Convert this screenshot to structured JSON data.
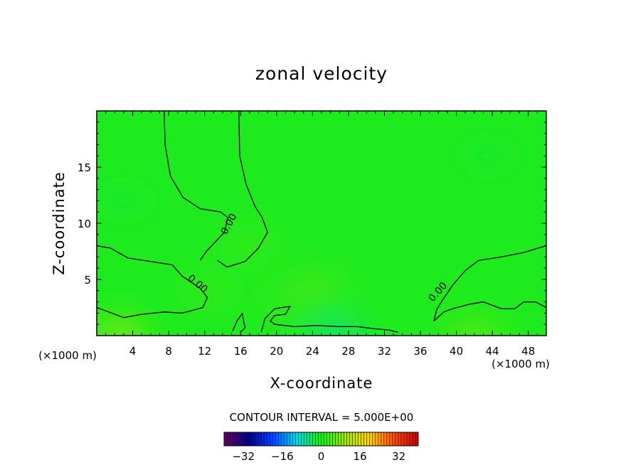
{
  "chart_data": {
    "type": "heatmap",
    "title": "zonal velocity",
    "xlabel": "X-coordinate",
    "ylabel": "Z-coordinate",
    "x_unit": "(×1000 m)",
    "y_unit": "(×1000 m)",
    "xlim": [
      0,
      50
    ],
    "ylim": [
      0,
      20
    ],
    "x_ticks": [
      4,
      8,
      12,
      16,
      20,
      24,
      28,
      32,
      36,
      40,
      44,
      48
    ],
    "y_ticks": [
      5,
      10,
      15
    ],
    "contour_interval_text": "CONTOUR INTERVAL = 5.000E+00",
    "contour_label": "0.00",
    "colorbar": {
      "range": [
        -40,
        40
      ],
      "ticks": [
        -32,
        -16,
        0,
        16,
        32
      ],
      "colormap": "rainbow (purple-blue-cyan-green-yellow-red)"
    },
    "field_dominant_value": 0,
    "zero_contours": [
      [
        [
          7.5,
          20
        ],
        [
          7.6,
          17
        ],
        [
          8.2,
          14.2
        ],
        [
          9.6,
          12.3
        ],
        [
          11.5,
          11.3
        ],
        [
          13.8,
          11.0
        ],
        [
          14.6,
          10.5
        ],
        [
          14.2,
          9.2
        ],
        [
          12.2,
          7.5
        ],
        [
          11.5,
          6.7
        ]
      ],
      [
        [
          15.8,
          20
        ],
        [
          15.9,
          16
        ],
        [
          16.6,
          13.5
        ],
        [
          17.6,
          11.5
        ],
        [
          18.4,
          10.5
        ],
        [
          19.0,
          9.2
        ],
        [
          18.0,
          7.8
        ],
        [
          16.5,
          6.6
        ],
        [
          14.5,
          6.1
        ],
        [
          13.4,
          6.7
        ]
      ],
      [
        [
          0,
          8.0
        ],
        [
          1.5,
          7.8
        ],
        [
          3.5,
          6.9
        ],
        [
          6.0,
          6.6
        ],
        [
          8.4,
          6.3
        ]
      ],
      [
        [
          8.4,
          6.3
        ],
        [
          9.5,
          5.3
        ],
        [
          11.5,
          4.2
        ],
        [
          12.3,
          3.4
        ],
        [
          11.8,
          2.5
        ],
        [
          9.5,
          2.0
        ],
        [
          7.5,
          2.1
        ],
        [
          5.0,
          1.9
        ],
        [
          3.0,
          1.6
        ],
        [
          1.0,
          2.2
        ],
        [
          0,
          2.5
        ]
      ],
      [
        [
          50,
          8.0
        ],
        [
          47.5,
          7.4
        ],
        [
          45.0,
          7.0
        ],
        [
          42.5,
          6.7
        ],
        [
          41.0,
          5.8
        ],
        [
          39.6,
          4.5
        ]
      ],
      [
        [
          39.6,
          4.5
        ],
        [
          38.5,
          3.2
        ],
        [
          37.8,
          2.3
        ],
        [
          37.5,
          1.3
        ]
      ],
      [
        [
          37.5,
          1.3
        ],
        [
          38.6,
          2.1
        ],
        [
          39.6,
          2.4
        ],
        [
          41.5,
          2.8
        ],
        [
          43.0,
          3.0
        ],
        [
          45.0,
          2.4
        ],
        [
          46.5,
          2.4
        ],
        [
          47.5,
          3.0
        ],
        [
          48.8,
          3.0
        ],
        [
          50,
          2.5
        ]
      ],
      [
        [
          18.3,
          0.3
        ],
        [
          18.7,
          1.5
        ],
        [
          19.8,
          2.4
        ],
        [
          21.5,
          2.6
        ],
        [
          21.0,
          1.9
        ],
        [
          19.8,
          1.8
        ],
        [
          19.3,
          1.3
        ],
        [
          19.8,
          1.0
        ],
        [
          22.0,
          0.8
        ],
        [
          24.5,
          0.9
        ],
        [
          27.0,
          0.8
        ],
        [
          29.0,
          0.8
        ],
        [
          31.0,
          0.6
        ],
        [
          32.5,
          0.5
        ],
        [
          33.5,
          0.3
        ]
      ],
      [
        [
          15.1,
          0.4
        ],
        [
          15.6,
          1.3
        ],
        [
          16.2,
          2.0
        ],
        [
          16.3,
          1.4
        ],
        [
          16.5,
          0.7
        ],
        [
          16.0,
          0.3
        ]
      ]
    ],
    "anomalies": [
      {
        "x": 16.8,
        "z": 8.0,
        "value": 1.8
      },
      {
        "x": 24.5,
        "z": 4.5,
        "value": 2.5
      },
      {
        "x": 21.5,
        "z": 3.2,
        "value": 2.0
      },
      {
        "x": 43.5,
        "z": 16.0,
        "value": -0.8
      },
      {
        "x": 3.0,
        "z": 12.0,
        "value": -0.9
      },
      {
        "x": 12.5,
        "z": 4.0,
        "value": 1.5
      },
      {
        "x": 26.5,
        "z": 0.4,
        "value": -4.5
      },
      {
        "x": 2.5,
        "z": 0.2,
        "value": 7.0
      },
      {
        "x": 42.0,
        "z": 0.1,
        "value": 4.5
      }
    ]
  }
}
